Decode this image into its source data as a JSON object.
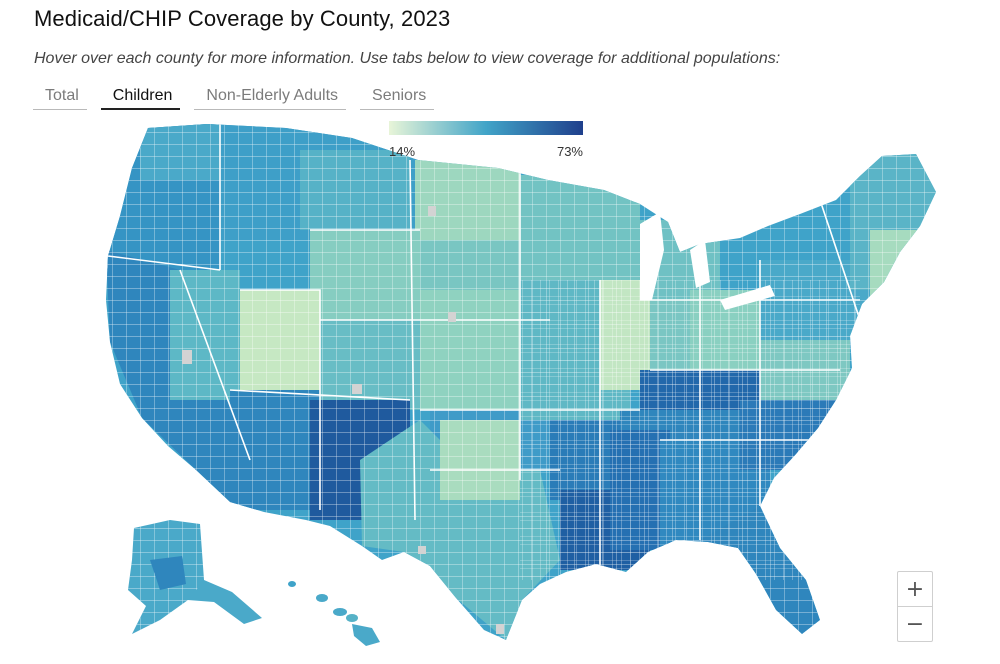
{
  "header": {
    "title": "Medicaid/CHIP Coverage by County, 2023",
    "subtitle": "Hover over each county for more information. Use tabs below to view coverage for additional populations:"
  },
  "tabs": [
    {
      "label": "Total",
      "active": false
    },
    {
      "label": "Children",
      "active": true
    },
    {
      "label": "Non-Elderly Adults",
      "active": false
    },
    {
      "label": "Seniors",
      "active": false
    }
  ],
  "legend": {
    "min_label": "14%",
    "max_label": "73%",
    "color_low": "#e8f5d8",
    "color_mid": "#41a4c8",
    "color_high": "#1f3f8c"
  },
  "zoom": {
    "plus_label": "+",
    "minus_label": "−"
  },
  "colors": {
    "very_low": "#d6eec7",
    "low": "#9fd8be",
    "mid_low": "#6cc0c4",
    "mid": "#3fa3c9",
    "mid_high": "#2f86bd",
    "high": "#2268ab",
    "very_high": "#1c4f94",
    "no_data": "#d3d3d3",
    "border": "#ffffff"
  }
}
